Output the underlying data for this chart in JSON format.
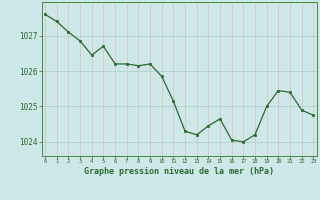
{
  "x": [
    0,
    1,
    2,
    3,
    4,
    5,
    6,
    7,
    8,
    9,
    10,
    11,
    12,
    13,
    14,
    15,
    16,
    17,
    18,
    19,
    20,
    21,
    22,
    23
  ],
  "y": [
    1027.6,
    1027.4,
    1027.1,
    1026.85,
    1026.45,
    1026.7,
    1026.2,
    1026.2,
    1026.15,
    1026.2,
    1025.85,
    1025.15,
    1024.3,
    1024.2,
    1024.45,
    1024.65,
    1024.05,
    1024.0,
    1024.2,
    1025.0,
    1025.45,
    1025.4,
    1024.9,
    1024.75
  ],
  "line_color": "#2d6a2d",
  "marker_color": "#2d6a2d",
  "bg_color": "#cce8e8",
  "grid_color_x": "#e8b8b8",
  "grid_color_y": "#aacccc",
  "ylabel_ticks": [
    1024,
    1025,
    1026,
    1027
  ],
  "xlabel_label": "Graphe pression niveau de la mer (hPa)",
  "ylim": [
    1023.6,
    1027.95
  ],
  "xlim": [
    -0.3,
    23.3
  ],
  "label_color": "#2d6a2d",
  "tick_color": "#2d6a2d"
}
